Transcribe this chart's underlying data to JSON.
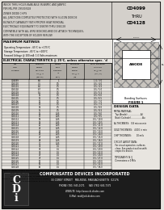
{
  "bg_color": "#e8e5e0",
  "header_lines": [
    "INSIDE THRU HOLES AVAILABLE IN ANPEC AND JANPEC",
    "PER MIL-PRF-19500/428",
    "ZENER DIODE CHIPS",
    "ALL JUNCTIONS COMPLETELY PROTECTED WITH SILICON DIOXIDE",
    "BLOWOUT CAPABILITY WITH PROPER HEAT REMOVAL",
    "ELECTRICALLY EQUIVALENT TO 1N4099 THRU 1N4128",
    "COMPATIBLE WITH ALL WIRE BONDING AND DIE ATTACH TECHNIQUES,",
    "WITH THE EXCEPTION OF SOLDER REFLOW"
  ],
  "part1": "CD4099",
  "part2": "THRU",
  "part3": "CD4128",
  "section_ratings": "MAXIMUM RATINGS",
  "ratings": [
    "Operating Temperature: -65°C to +175°C",
    "Storage Temperature: -65°C to +200°C",
    "Forward Voltage @ 200 mA: 1.0 Volts maximum"
  ],
  "section_elec": "ELECTRICAL CHARACTERISTICS @ 25°C, unless otherwise spec. 'd",
  "table_rows": [
    [
      "CD4099",
      "6.8",
      "1",
      "",
      "1.0 / 3.0"
    ],
    [
      "CD4100",
      "7.5",
      "0.5",
      "",
      "0.5 / 4.0"
    ],
    [
      "CD4101",
      "8.2",
      "0.5",
      "",
      "0.5 / 4.5"
    ],
    [
      "CD4102",
      "8.7",
      "0.5",
      "",
      "0.5 / 5.0"
    ],
    [
      "CD4103",
      "9.1",
      "0.5",
      "",
      "0.5 / 5.5"
    ],
    [
      "CD4104",
      "10",
      "0.5",
      "",
      "0.5 / 6.0"
    ],
    [
      "CD4105",
      "11",
      "0.5",
      "",
      "0.5 / 6.5"
    ],
    [
      "CD4106",
      "12",
      "0.5",
      "",
      "0.5 / 7.0"
    ],
    [
      "CD4107",
      "13",
      "0.5",
      "",
      "0.5 / 7.5"
    ],
    [
      "CD4108",
      "14",
      "0.5",
      "",
      "0.5 / 8.0"
    ],
    [
      "CD4109",
      "15",
      "0.5",
      "",
      "0.5 / 8.5"
    ],
    [
      "CD4110",
      "16",
      "0.25",
      "",
      "0.5 / 9.0"
    ],
    [
      "CD4111",
      "17",
      "0.25",
      "",
      "0.5 / 9.5"
    ],
    [
      "CD4112",
      "18",
      "0.25",
      "",
      "0.5 / 10.0"
    ],
    [
      "CD4113",
      "19",
      "0.25",
      "",
      "0.5 / 10.5"
    ],
    [
      "CD4114",
      "20",
      "0.25",
      "",
      "0.5 / 11.0"
    ],
    [
      "CD4115",
      "22",
      "0.25",
      "",
      "0.5 / 12.0"
    ],
    [
      "CD4116",
      "24",
      "0.25",
      "",
      "0.5 / 13.0"
    ],
    [
      "CD4117",
      "25",
      "0.25",
      "",
      "0.5 / 14.0"
    ],
    [
      "CD4118",
      "27",
      "0.25",
      "",
      "0.5 / 15.0"
    ],
    [
      "CD4119",
      "28",
      "0.25",
      "",
      "0.5 / 16.0"
    ],
    [
      "CD4120",
      "30",
      "0.25",
      "",
      "0.5 / 17.0"
    ],
    [
      "CD4121",
      "33",
      "0.1",
      "",
      "0.5 / 19.0"
    ],
    [
      "CD4122",
      "36",
      "0.1",
      "",
      "0.5 / 20.0"
    ],
    [
      "CD4123",
      "39",
      "0.1",
      "",
      "0.5 / 22.0"
    ],
    [
      "CD4124",
      "43",
      "0.1",
      "",
      "0.5 / 24.0"
    ],
    [
      "CD4125",
      "47",
      "0.1",
      "",
      "0.5 / 27.0"
    ],
    [
      "CD4126",
      "51",
      "0.1",
      "",
      "0.5 / 29.0"
    ],
    [
      "CD4127",
      "56",
      "0.1",
      "",
      "0.5 / 32.0"
    ],
    [
      "CD4128",
      "62",
      "0.1",
      "",
      "0.5 / 36.0"
    ]
  ],
  "note1": "NOTE 1:  Zener voltage tolerance available from face voltage ± 5% to no additional",
  "note1b": "             spec. Voltage should using a series resistor. All additional tolerance",
  "note1c": "             5%: replace -y (5 year) 10 adds -y 2 5%.",
  "note2": "NOTE 2:  Zener impedance is electrically characterized at Iz, S.",
  "note2b": "             Reference to a current equal to 100 mA typ.",
  "design_data_title": "DESIGN DATA",
  "design_lines": [
    "METAL MATERIAL:",
    "  Top (Anode)......................Al",
    "  Back (Cathode)...................Au",
    "",
    "AL THICKNESS:   0.8 micron min",
    "",
    "GOLD THICKNESS:   4.000 in min",
    "",
    "CHIP THICKNESS:        10 mils",
    "",
    "CIRCUIT LAYOUT DATA:",
    "  For circuit operation, surfaces",
    "  clean. See product outline with",
    "  respect to device.",
    "",
    "TOPOGRAPHY: N / J",
    "  Dimensions ± 0 Mils"
  ],
  "fig_title": "Bonding Surfaces",
  "fig_label": "FIGURE 1",
  "company": "COMPENSATED DEVICES INCORPORATED",
  "address": "33 COREY STREET   MELROSE, MASSACHUSETTS  02176",
  "phone": "PHONE (781) 665-1071",
  "fax": "FAX (781) 665-7375",
  "website": "WEBSITE: http://www.cdi-diodes.com",
  "email": "E-Mail: mail@cdi-diodes.com",
  "footer_bg": "#1c1c1c",
  "white": "#ffffff",
  "black": "#000000",
  "light_gray": "#d4d0cb",
  "mid_gray": "#b0aca6"
}
